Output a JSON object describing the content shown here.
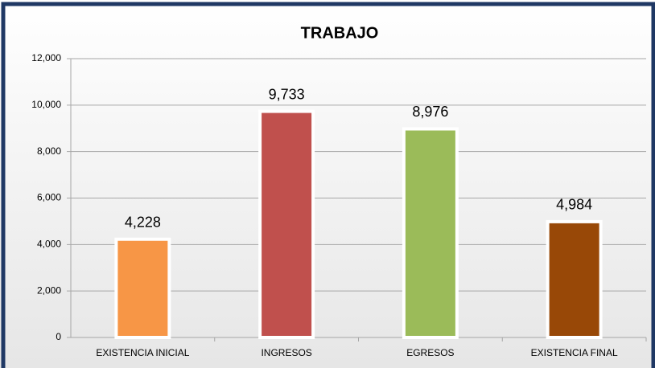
{
  "chart_data": {
    "type": "bar",
    "title": "TRABAJO",
    "categories": [
      "EXISTENCIA INICIAL",
      "INGRESOS",
      "EGRESOS",
      "EXISTENCIA FINAL"
    ],
    "values": [
      4228,
      9733,
      8976,
      4984
    ],
    "value_labels": [
      "4,228",
      "9,733",
      "8,976",
      "4,984"
    ],
    "colors": [
      "#f79646",
      "#c0504d",
      "#9bbb59",
      "#984807"
    ],
    "ylim": [
      0,
      12000
    ],
    "yticks": [
      0,
      {
        "value": 2000,
        "label": "2,000"
      },
      {
        "value": 4000,
        "label": "4,000"
      },
      {
        "value": 6000,
        "label": "6,000"
      },
      {
        "value": 8000,
        "label": "8,000"
      },
      {
        "value": 10000,
        "label": "10,000"
      },
      {
        "value": 12000,
        "label": "12,000"
      }
    ],
    "grid": true
  }
}
